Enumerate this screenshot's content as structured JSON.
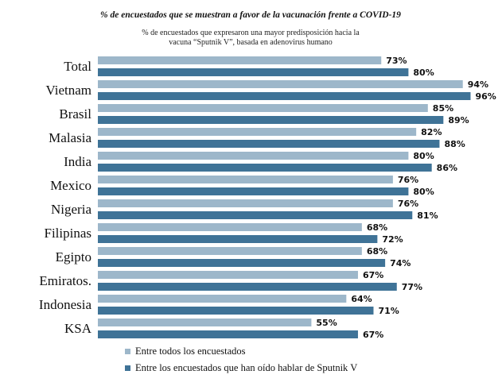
{
  "chart_data": {
    "type": "bar",
    "orientation": "horizontal",
    "title": "% de encuestados que se muestran a favor de la vacunación frente a COVID-19",
    "subtitle": [
      "% de encuestados que expresaron una mayor predisposición hacia la",
      "vacuna “Sputnik V”, basada en adenovirus humano"
    ],
    "categories": [
      "Total",
      "Vietnam",
      "Brasil",
      "Malasia",
      "India",
      "Mexico",
      "Nigeria",
      "Filipinas",
      "Egipto",
      "Emiratos.",
      "Indonesia",
      "KSA"
    ],
    "series": [
      {
        "name": "Entre todos los encuestados",
        "color": "#9db7ca",
        "values": [
          73,
          94,
          85,
          82,
          80,
          76,
          76,
          68,
          68,
          67,
          64,
          55
        ],
        "labels": [
          "73%",
          "94%",
          "85%",
          "82%",
          "80%",
          "76%",
          "76%",
          "68%",
          "68%",
          "67%",
          "64%",
          "55%"
        ]
      },
      {
        "name": "Entre los encuestados que han oído hablar de Sputnik V",
        "color": "#3f7397",
        "values": [
          80,
          96,
          89,
          88,
          86,
          80,
          81,
          72,
          74,
          77,
          71,
          67
        ],
        "labels": [
          "80%",
          "96%",
          "89%",
          "88%",
          "86%",
          "80%",
          "81%",
          "72%",
          "74%",
          "77%",
          "71%",
          "67%"
        ]
      }
    ],
    "xlim": [
      0,
      100
    ],
    "legend": "bottom-left",
    "grid": false
  }
}
